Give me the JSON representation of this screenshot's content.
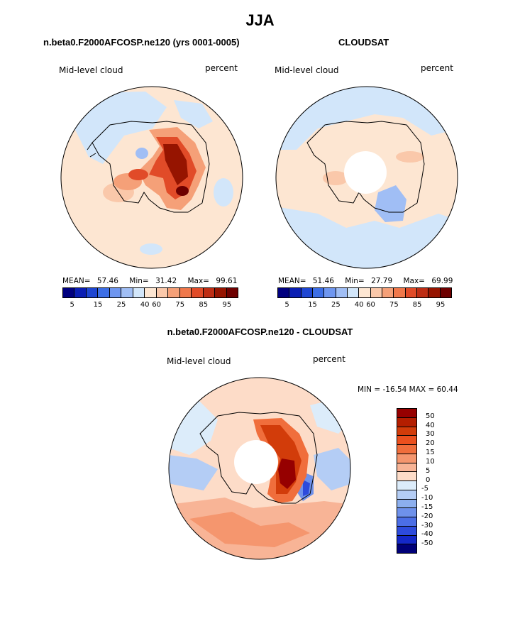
{
  "title": "JJA",
  "panels": {
    "left": {
      "subtitle": "n.beta0.F2000AFCOSP.ne120 (yrs 0001-0005)",
      "variable": "Mid-level cloud",
      "units": "percent",
      "stats": {
        "mean_label": "MEAN=",
        "mean": "57.46",
        "min_label": "Min=",
        "min": "31.42",
        "max_label": "Max=",
        "max": "99.61"
      }
    },
    "right": {
      "subtitle": "CLOUDSAT",
      "variable": "Mid-level cloud",
      "units": "percent",
      "stats": {
        "mean_label": "MEAN=",
        "mean": "51.46",
        "min_label": "Min=",
        "min": "27.79",
        "max_label": "Max=",
        "max": "69.99"
      }
    },
    "diff": {
      "subtitle": "n.beta0.F2000AFCOSP.ne120 - CLOUDSAT",
      "variable": "Mid-level cloud",
      "units": "percent",
      "stats_text": "MIN = -16.54 MAX =  60.44"
    }
  },
  "colorbar_abs": {
    "colors": [
      "#00007f",
      "#0a1eb4",
      "#1e46d2",
      "#3c6ee6",
      "#6e96f0",
      "#a0bef5",
      "#d2e6fa",
      "#fde6d2",
      "#fac8aa",
      "#f5a078",
      "#f0784b",
      "#e14b28",
      "#be2d14",
      "#961400",
      "#6e0000"
    ],
    "ticks": [
      "5",
      "15",
      "25",
      "40",
      "60",
      "75",
      "85",
      "95"
    ]
  },
  "colorbar_diff": {
    "colors": [
      "#960000",
      "#b41e00",
      "#d23c0a",
      "#eb501e",
      "#f06e3c",
      "#f5966e",
      "#f8b496",
      "#fddcc8",
      "#dcecfa",
      "#b4cdf5",
      "#8cafee",
      "#6e91eb",
      "#4b6ee6",
      "#2d4bdc",
      "#1428c8",
      "#000078"
    ],
    "ticks": [
      "50",
      "40",
      "30",
      "20",
      "15",
      "10",
      "5",
      "0",
      "-5",
      "-10",
      "-15",
      "-20",
      "-30",
      "-40",
      "-50"
    ]
  }
}
